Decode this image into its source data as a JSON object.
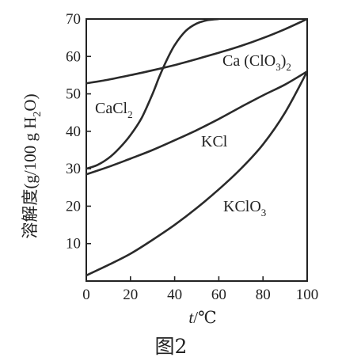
{
  "chart_data": {
    "type": "line",
    "ylabel_prefix": "溶解度(g/100 g H",
    "ylabel_sub": "2",
    "ylabel_suffix": "O)",
    "xlabel_var": "t",
    "xlabel_unit": "/℃",
    "caption": "图2",
    "xlim": [
      0,
      100
    ],
    "ylim": [
      0,
      70
    ],
    "x_ticks": [
      0,
      20,
      40,
      60,
      80,
      100
    ],
    "y_ticks": [
      10,
      20,
      30,
      40,
      50,
      60,
      70
    ],
    "grid": false,
    "series": [
      {
        "name": "Ca (ClO3)2",
        "label_main": "Ca (ClO",
        "label_sub1": "3",
        "label_mid": ")",
        "label_sub2": "2",
        "x": [
          0,
          10,
          20,
          30,
          40,
          50,
          60,
          70,
          80,
          90,
          100
        ],
        "y": [
          52.8,
          53.8,
          55.0,
          56.3,
          57.7,
          59.3,
          61.0,
          62.8,
          64.9,
          67.3,
          70.0
        ]
      },
      {
        "name": "CaCl2",
        "label_main": "CaCl",
        "label_sub1": "2",
        "x": [
          0,
          5,
          10,
          15,
          20,
          25,
          30,
          33,
          36,
          40,
          45,
          50,
          55,
          60
        ],
        "y": [
          30.0,
          31.0,
          32.8,
          35.5,
          39.0,
          43.5,
          50.0,
          54.5,
          58.5,
          63.0,
          66.8,
          68.8,
          69.7,
          70.0
        ]
      },
      {
        "name": "KCl",
        "label_main": "KCl",
        "x": [
          0,
          10,
          20,
          30,
          40,
          50,
          60,
          70,
          80,
          90,
          100
        ],
        "y": [
          28.5,
          30.5,
          32.7,
          35.0,
          37.6,
          40.3,
          43.3,
          46.5,
          49.6,
          52.5,
          56.0
        ]
      },
      {
        "name": "KClO3",
        "label_main": "KClO",
        "label_sub1": "3",
        "x": [
          0,
          10,
          20,
          30,
          40,
          50,
          60,
          70,
          80,
          90,
          100
        ],
        "y": [
          1.5,
          4.3,
          7.3,
          11.0,
          15.0,
          19.5,
          24.5,
          30.0,
          36.5,
          45.0,
          56.0
        ]
      }
    ]
  }
}
